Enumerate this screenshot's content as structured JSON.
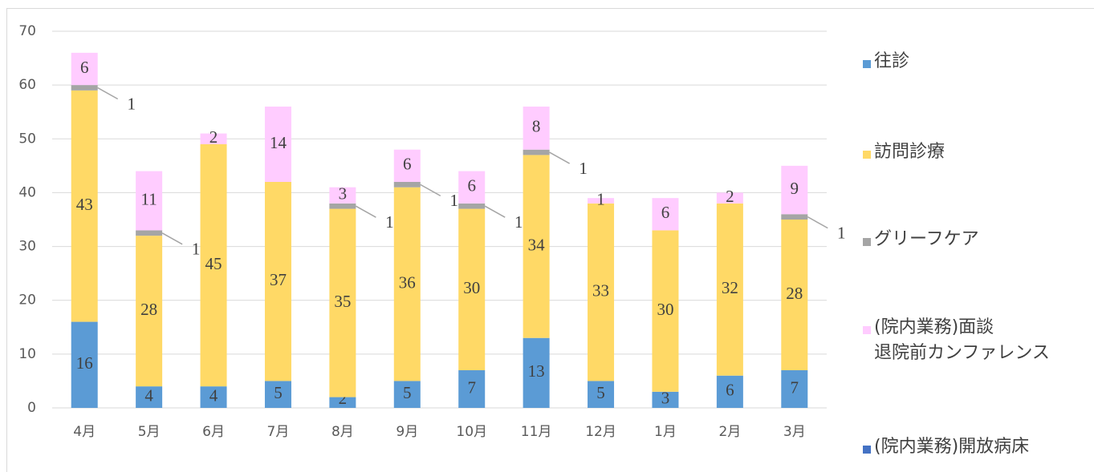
{
  "chart_data": {
    "type": "stacked-bar",
    "categories": [
      "4月",
      "5月",
      "6月",
      "7月",
      "8月",
      "9月",
      "10月",
      "11月",
      "12月",
      "1月",
      "2月",
      "3月"
    ],
    "series": [
      {
        "name": "往診",
        "color": "#5b9bd5",
        "values": [
          16,
          4,
          4,
          5,
          2,
          5,
          7,
          13,
          5,
          3,
          6,
          7
        ]
      },
      {
        "name": "訪問診療",
        "color": "#ffd966",
        "values": [
          43,
          28,
          45,
          37,
          35,
          36,
          30,
          34,
          33,
          30,
          32,
          28
        ]
      },
      {
        "name": "グリーフケア",
        "color": "#a5a5a5",
        "values": [
          1,
          1,
          null,
          null,
          1,
          1,
          1,
          1,
          null,
          null,
          null,
          1
        ]
      },
      {
        "name": "(院内業務)面談\n退院前カンファレンス",
        "color": "#ffccff",
        "values": [
          6,
          11,
          2,
          14,
          3,
          6,
          6,
          8,
          1,
          6,
          2,
          9
        ]
      },
      {
        "name": "(院内業務)開放病床",
        "color": "#4472c4",
        "values": [
          null,
          null,
          null,
          null,
          null,
          null,
          null,
          null,
          null,
          null,
          null,
          null
        ]
      }
    ],
    "ylim": [
      0,
      70
    ],
    "yticks": [
      0,
      10,
      20,
      30,
      40,
      50,
      60,
      70
    ],
    "grid": true,
    "legend": "right"
  }
}
